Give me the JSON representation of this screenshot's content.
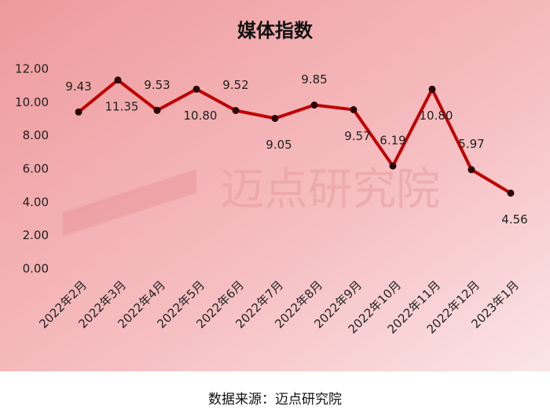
{
  "chart_data": {
    "type": "line",
    "title": "媒体指数",
    "categories": [
      "2022年2月",
      "2022年3月",
      "2022年4月",
      "2022年5月",
      "2022年6月",
      "2022年7月",
      "2022年8月",
      "2022年9月",
      "2022年10月",
      "2022年11月",
      "2022年12月",
      "2023年1月"
    ],
    "values": [
      9.43,
      11.35,
      9.53,
      10.8,
      9.52,
      9.05,
      9.85,
      9.57,
      6.19,
      10.8,
      5.97,
      4.56
    ],
    "value_labels": [
      "9.43",
      "11.35",
      "9.53",
      "10.80",
      "9.52",
      "9.05",
      "9.85",
      "9.57",
      "6.19",
      "10.80",
      "5.97",
      "4.56"
    ],
    "color": "#c00000",
    "ylim": [
      0,
      12
    ],
    "yticks": [
      {
        "value": 0,
        "label": "0.00"
      },
      {
        "value": 2,
        "label": "2.00"
      },
      {
        "value": 4,
        "label": "4.00"
      },
      {
        "value": 6,
        "label": "6.00"
      },
      {
        "value": 8,
        "label": "8.00"
      },
      {
        "value": 10,
        "label": "10.00"
      },
      {
        "value": 12,
        "label": "12.00"
      }
    ],
    "watermark": "迈点研究院",
    "source": "数据来源：迈点研究院"
  }
}
